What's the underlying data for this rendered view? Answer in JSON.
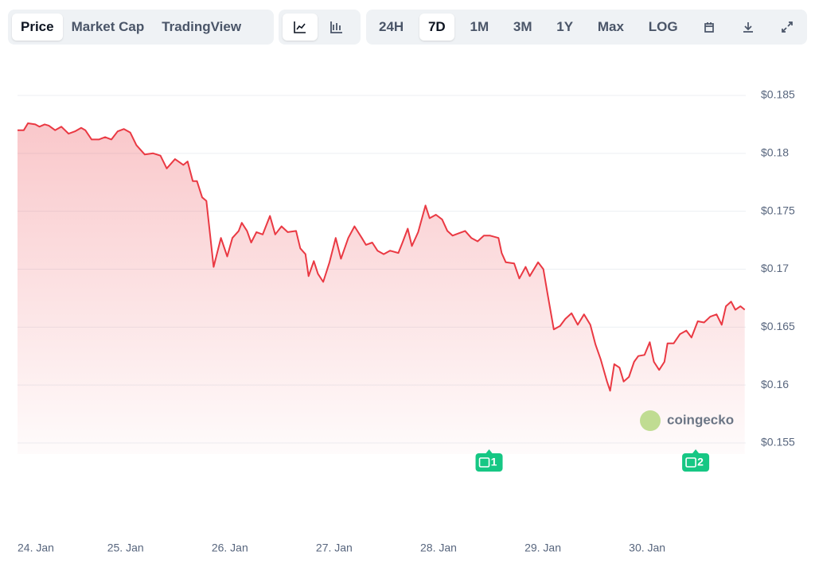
{
  "toolbar": {
    "views": [
      "Price",
      "Market Cap",
      "TradingView"
    ],
    "selected_view": 0,
    "ranges": [
      "24H",
      "7D",
      "1M",
      "3M",
      "1Y",
      "Max",
      "LOG"
    ],
    "selected_range": 1
  },
  "watermark": "coingecko",
  "chart_data": {
    "type": "line",
    "color": "#ea3943",
    "grid": true,
    "x": [
      24.14,
      24.2,
      24.24,
      24.31,
      24.35,
      24.4,
      24.44,
      24.5,
      24.56,
      24.63,
      24.69,
      24.75,
      24.79,
      24.85,
      24.92,
      24.98,
      25.04,
      25.1,
      25.16,
      25.22,
      25.28,
      25.36,
      25.44,
      25.51,
      25.57,
      25.65,
      25.73,
      25.77,
      25.82,
      25.86,
      25.91,
      25.95,
      26.02,
      26.09,
      26.15,
      26.2,
      26.26,
      26.29,
      26.34,
      26.38,
      26.43,
      26.49,
      26.56,
      26.61,
      26.67,
      26.73,
      26.81,
      26.85,
      26.9,
      26.93,
      26.98,
      27.02,
      27.07,
      27.13,
      27.19,
      27.24,
      27.31,
      27.37,
      27.44,
      27.48,
      27.54,
      27.59,
      27.65,
      27.71,
      27.79,
      27.83,
      27.88,
      27.92,
      27.98,
      28.05,
      28.09,
      28.15,
      28.21,
      28.26,
      28.31,
      28.37,
      28.43,
      28.49,
      28.55,
      28.61,
      28.67,
      28.75,
      28.78,
      28.82,
      28.9,
      28.95,
      29.01,
      29.05,
      29.13,
      29.18,
      29.22,
      29.28,
      29.34,
      29.39,
      29.45,
      29.51,
      29.57,
      29.63,
      29.68,
      29.73,
      29.79,
      29.82,
      29.86,
      29.91,
      29.95,
      30.0,
      30.05,
      30.09,
      30.15,
      30.2,
      30.24,
      30.29,
      30.34,
      30.37,
      30.43,
      30.49,
      30.55,
      30.6,
      30.66,
      30.72,
      30.78,
      30.84,
      30.89,
      30.93,
      30.98,
      31.02,
      31.07,
      31.11
    ],
    "values": [
      0.182,
      0.182,
      0.1826,
      0.1825,
      0.1823,
      0.1825,
      0.1824,
      0.182,
      0.1823,
      0.1817,
      0.1819,
      0.1822,
      0.182,
      0.1812,
      0.1812,
      0.1814,
      0.1812,
      0.1819,
      0.1821,
      0.1818,
      0.1807,
      0.1799,
      0.18,
      0.1798,
      0.1787,
      0.1795,
      0.179,
      0.1793,
      0.1776,
      0.1776,
      0.1762,
      0.1759,
      0.1702,
      0.1727,
      0.1711,
      0.1727,
      0.1733,
      0.174,
      0.1733,
      0.1723,
      0.1732,
      0.173,
      0.1746,
      0.173,
      0.1737,
      0.1732,
      0.1733,
      0.1718,
      0.1713,
      0.1694,
      0.1707,
      0.1696,
      0.1689,
      0.1706,
      0.1727,
      0.1709,
      0.1727,
      0.1737,
      0.1727,
      0.1721,
      0.1723,
      0.1716,
      0.1713,
      0.1716,
      0.1714,
      0.1723,
      0.1735,
      0.172,
      0.1732,
      0.1755,
      0.1744,
      0.1747,
      0.1743,
      0.1733,
      0.1729,
      0.1731,
      0.1733,
      0.1727,
      0.1724,
      0.1729,
      0.1729,
      0.1727,
      0.1714,
      0.1706,
      0.1705,
      0.1692,
      0.1702,
      0.1694,
      0.1706,
      0.17,
      0.1679,
      0.1648,
      0.1651,
      0.1657,
      0.1662,
      0.1652,
      0.1661,
      0.1652,
      0.1635,
      0.1622,
      0.1603,
      0.1595,
      0.1618,
      0.1615,
      0.1603,
      0.1607,
      0.162,
      0.1625,
      0.1626,
      0.1637,
      0.162,
      0.1613,
      0.162,
      0.1636,
      0.1636,
      0.1644,
      0.1647,
      0.1641,
      0.1655,
      0.1654,
      0.1659,
      0.1661,
      0.1652,
      0.1668,
      0.1672,
      0.1665,
      0.1668,
      0.1665
    ],
    "xlim": [
      24.14,
      31.12
    ],
    "xticks": [
      {
        "value": 24,
        "label": "24. Jan"
      },
      {
        "value": 25,
        "label": "25. Jan"
      },
      {
        "value": 26,
        "label": "26. Jan"
      },
      {
        "value": 27,
        "label": "27. Jan"
      },
      {
        "value": 28,
        "label": "28. Jan"
      },
      {
        "value": 29,
        "label": "29. Jan"
      },
      {
        "value": 30,
        "label": "30. Jan"
      }
    ],
    "ylim": [
      0.155,
      0.185
    ],
    "yticks": [
      {
        "value": 0.155,
        "label": "$0.155"
      },
      {
        "value": 0.16,
        "label": "$0.16"
      },
      {
        "value": 0.165,
        "label": "$0.165"
      },
      {
        "value": 0.17,
        "label": "$0.17"
      },
      {
        "value": 0.175,
        "label": "$0.175"
      },
      {
        "value": 0.18,
        "label": "$0.18"
      },
      {
        "value": 0.185,
        "label": "$0.185"
      }
    ],
    "events": [
      {
        "x": 28.66,
        "label": "1"
      },
      {
        "x": 30.64,
        "label": "2"
      }
    ]
  }
}
